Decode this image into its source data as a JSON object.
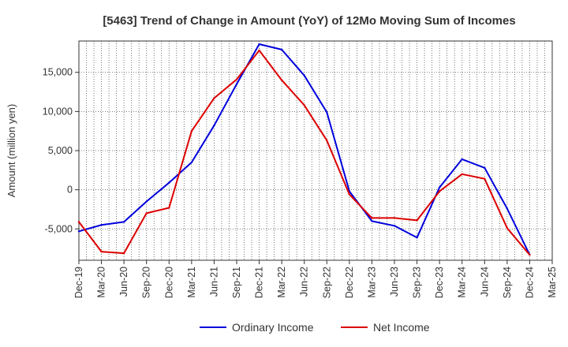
{
  "chart_data": {
    "type": "line",
    "title": "[5463]  Trend of Change in Amount (YoY) of 12Mo Moving Sum of Incomes",
    "ylabel": "Amount (million yen)",
    "xlabel": "",
    "ylim": [
      -9000,
      19000
    ],
    "yticks": [
      -5000,
      0,
      5000,
      10000,
      15000
    ],
    "ytick_labels": [
      "-5,000",
      "0",
      "5,000",
      "10,000",
      "15,000"
    ],
    "x_tick_labels": [
      "Dec-19",
      "Mar-20",
      "Jun-20",
      "Sep-20",
      "Dec-20",
      "Mar-21",
      "Jun-21",
      "Sep-21",
      "Dec-21",
      "Mar-22",
      "Jun-22",
      "Sep-22",
      "Dec-22",
      "Mar-23",
      "Jun-23",
      "Sep-23",
      "Dec-23",
      "Mar-24",
      "Jun-24",
      "Sep-24",
      "Dec-24",
      "Mar-25"
    ],
    "grid": true,
    "legend_position": "bottom",
    "series": [
      {
        "name": "Ordinary Income",
        "color": "#0000dd",
        "values": [
          -5300,
          -4500,
          -4100,
          -1500,
          900,
          3500,
          8200,
          13500,
          18600,
          17900,
          14600,
          9900,
          -200,
          -4000,
          -4600,
          -6100,
          300,
          3900,
          2800,
          -2400,
          -8300,
          null
        ]
      },
      {
        "name": "Net Income",
        "color": "#dd0000",
        "values": [
          -4100,
          -7900,
          -8100,
          -3000,
          -2300,
          7500,
          11700,
          14100,
          17800,
          14000,
          10800,
          6300,
          -600,
          -3600,
          -3600,
          -3900,
          -200,
          2000,
          1400,
          -4900,
          -8300,
          null
        ]
      }
    ]
  }
}
